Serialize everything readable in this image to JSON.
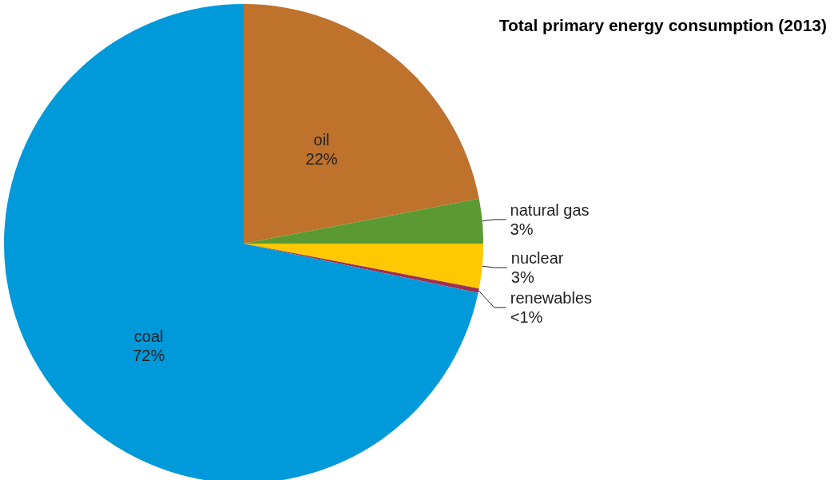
{
  "chart_data": {
    "type": "pie",
    "title": "Total primary energy consumption (2013)",
    "categories": [
      "oil",
      "natural gas",
      "nuclear",
      "renewables",
      "coal"
    ],
    "values": [
      22,
      3,
      3,
      0.3,
      71.7
    ],
    "value_labels": [
      "22%",
      "3%",
      "3%",
      "<1%",
      "72%"
    ],
    "colors": [
      "#bf722c",
      "#5b9a32",
      "#ffc800",
      "#a03050",
      "#0099d9"
    ]
  }
}
